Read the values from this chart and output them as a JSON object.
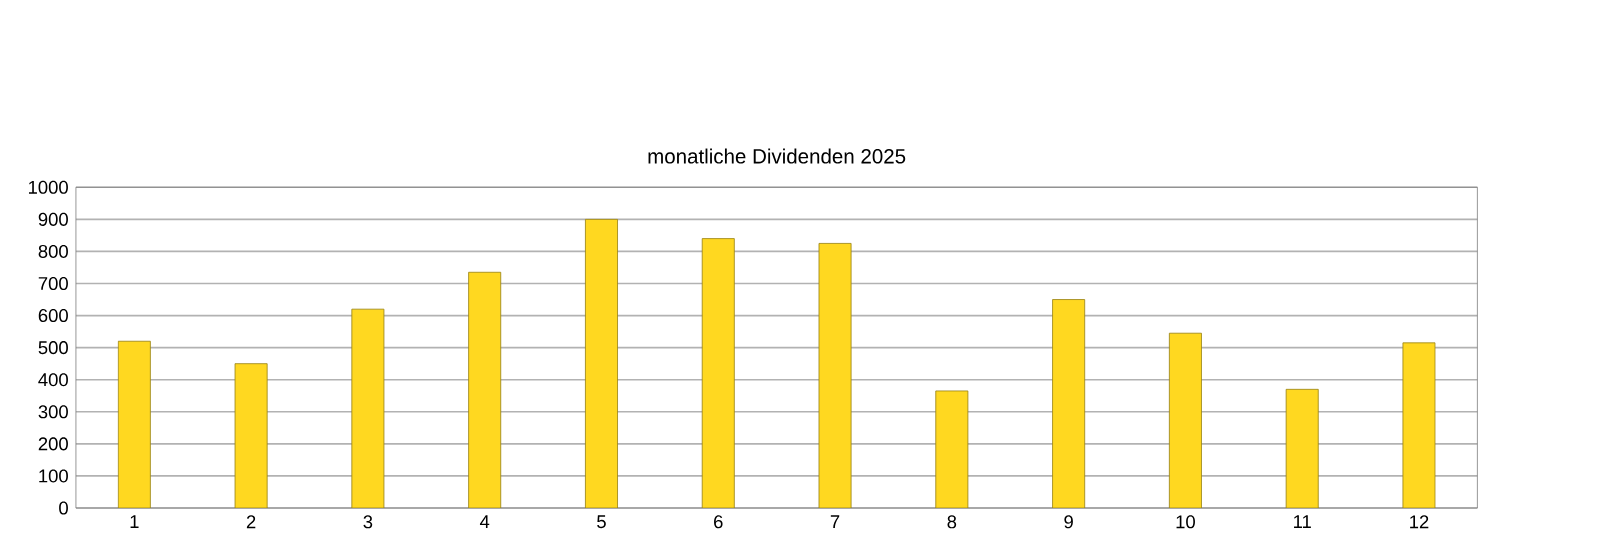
{
  "chart_data": {
    "type": "bar",
    "title": "monatliche Dividenden 2025",
    "categories": [
      "1",
      "2",
      "3",
      "4",
      "5",
      "6",
      "7",
      "8",
      "9",
      "10",
      "11",
      "12"
    ],
    "values": [
      520,
      450,
      620,
      735,
      900,
      840,
      825,
      365,
      650,
      545,
      370,
      515
    ],
    "color": "#ffd820",
    "ylim": [
      0,
      1000
    ],
    "yticks": [
      0,
      100,
      200,
      300,
      400,
      500,
      600,
      700,
      800,
      900,
      1000
    ],
    "grid": "y"
  }
}
